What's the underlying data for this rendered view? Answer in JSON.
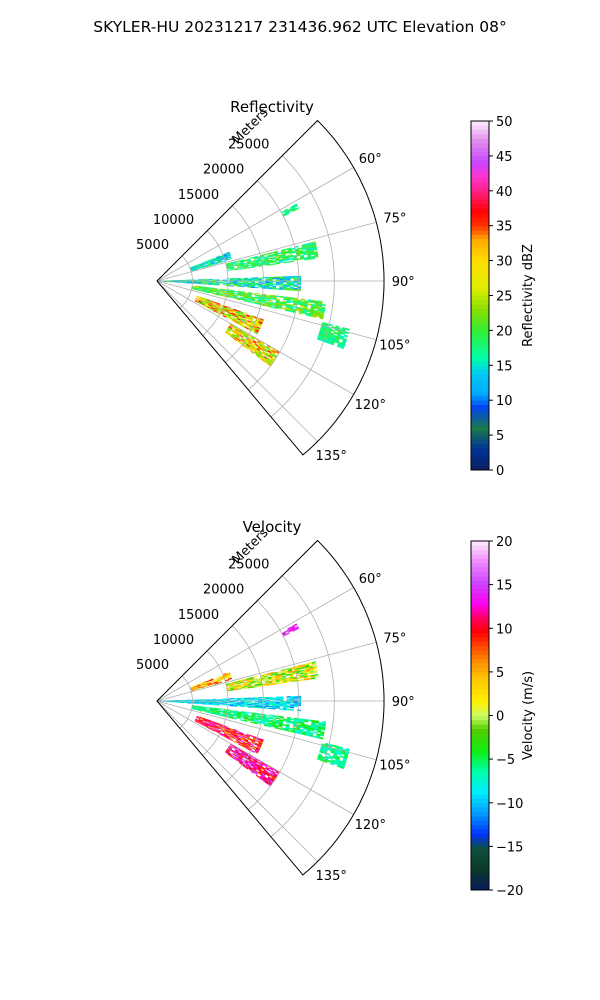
{
  "figure_title": "SKYLER-HU  20231217  231436.962 UTC Elevation 08°",
  "chart_data": [
    {
      "type": "heatmap",
      "subtype": "polar-ppi-sector",
      "title": "Reflectivity",
      "radial_axis_label": "Meters",
      "r_ticks": [
        5000,
        10000,
        15000,
        20000,
        25000
      ],
      "r_tick_labels": [
        "5000",
        "10000",
        "15000",
        "20000",
        "25000"
      ],
      "rlim": [
        0,
        32000
      ],
      "theta_ticks": [
        60,
        75,
        90,
        105,
        120,
        135
      ],
      "theta_tick_labels": [
        "60°",
        "75°",
        "90°",
        "105°",
        "120°",
        "135°"
      ],
      "theta_range": [
        45,
        140
      ],
      "grid": true,
      "colorbar": {
        "label": "Reflectivity dBZ",
        "range": [
          0,
          50
        ],
        "ticks": [
          0,
          5,
          10,
          15,
          20,
          25,
          30,
          35,
          40,
          45,
          50
        ],
        "tick_labels": [
          "0",
          "5",
          "10",
          "15",
          "20",
          "25",
          "30",
          "35",
          "40",
          "45",
          "50"
        ],
        "colormap": "pyart_HomeyerRainbow"
      },
      "echo_regions": [
        {
          "az": [
            68,
            74
          ],
          "r": [
            5000,
            11000
          ],
          "dbz": [
            10,
            20
          ]
        },
        {
          "az": [
            61,
            63
          ],
          "r": [
            20000,
            22500
          ],
          "dbz": [
            15,
            20
          ]
        },
        {
          "az": [
            76,
            82
          ],
          "r": [
            10000,
            23000
          ],
          "dbz": [
            15,
            22
          ]
        },
        {
          "az": [
            88,
            94
          ],
          "r": [
            0,
            20000
          ],
          "dbz": [
            10,
            22
          ]
        },
        {
          "az": [
            97,
            103
          ],
          "r": [
            5000,
            24000
          ],
          "dbz": [
            15,
            25
          ]
        },
        {
          "az": [
            104,
            110
          ],
          "r": [
            24000,
            28000
          ],
          "dbz": [
            15,
            20
          ]
        },
        {
          "az": [
            110,
            118
          ],
          "r": [
            6000,
            16000
          ],
          "dbz": [
            20,
            38
          ]
        },
        {
          "az": [
            120,
            127
          ],
          "r": [
            12000,
            20000
          ],
          "dbz": [
            20,
            36
          ]
        }
      ]
    },
    {
      "type": "heatmap",
      "subtype": "polar-ppi-sector",
      "title": "Velocity",
      "radial_axis_label": "Meters",
      "r_ticks": [
        5000,
        10000,
        15000,
        20000,
        25000
      ],
      "r_tick_labels": [
        "5000",
        "10000",
        "15000",
        "20000",
        "25000"
      ],
      "rlim": [
        0,
        32000
      ],
      "theta_ticks": [
        60,
        75,
        90,
        105,
        120,
        135
      ],
      "theta_tick_labels": [
        "60°",
        "75°",
        "90°",
        "105°",
        "120°",
        "135°"
      ],
      "theta_range": [
        45,
        140
      ],
      "grid": true,
      "colorbar": {
        "label": "Velocity (m/s)",
        "range": [
          -20,
          20
        ],
        "ticks": [
          -20,
          -15,
          -10,
          -5,
          0,
          5,
          10,
          15,
          20
        ],
        "tick_labels": [
          "−20",
          "−15",
          "−10",
          "−5",
          "0",
          "5",
          "10",
          "15",
          "20"
        ],
        "colormap": "pyart_BuDRd18"
      },
      "echo_regions": [
        {
          "az": [
            68,
            74
          ],
          "r": [
            5000,
            11000
          ],
          "vel": [
            0,
            10
          ]
        },
        {
          "az": [
            61,
            63
          ],
          "r": [
            20000,
            22500
          ],
          "vel": [
            12,
            16
          ]
        },
        {
          "az": [
            76,
            82
          ],
          "r": [
            10000,
            23000
          ],
          "vel": [
            -4,
            6
          ]
        },
        {
          "az": [
            88,
            94
          ],
          "r": [
            0,
            20000
          ],
          "vel": [
            -12,
            -6
          ]
        },
        {
          "az": [
            97,
            103
          ],
          "r": [
            5000,
            24000
          ],
          "vel": [
            -8,
            -3
          ]
        },
        {
          "az": [
            104,
            110
          ],
          "r": [
            24000,
            28000
          ],
          "vel": [
            -8,
            -4
          ]
        },
        {
          "az": [
            110,
            118
          ],
          "r": [
            6000,
            16000
          ],
          "vel": [
            6,
            14
          ]
        },
        {
          "az": [
            120,
            127
          ],
          "r": [
            12000,
            20000
          ],
          "vel": [
            8,
            16
          ]
        }
      ]
    }
  ]
}
